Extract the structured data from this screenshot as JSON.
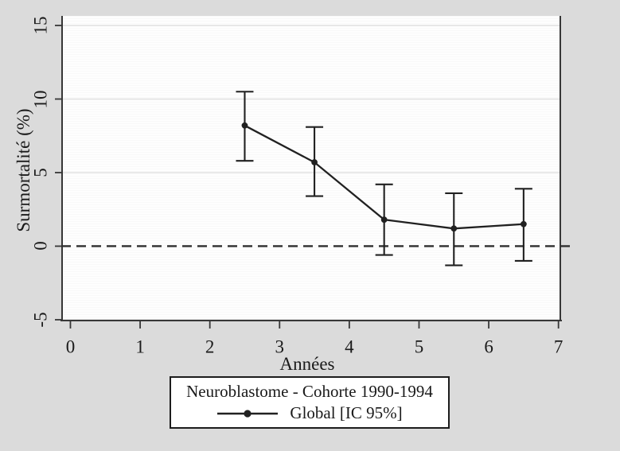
{
  "figure": {
    "background_color": "#dbdbdb",
    "plot_background_color": "#fefefe"
  },
  "chart_data": {
    "type": "line",
    "title": "",
    "xlabel": "Années",
    "ylabel": "Surmortalité (%)",
    "x_ticks": [
      0,
      1,
      2,
      3,
      4,
      5,
      6,
      7
    ],
    "y_ticks": [
      15,
      10,
      5,
      0,
      -5
    ],
    "xlim": [
      -0.131,
      7.038
    ],
    "ylim": [
      -5.11,
      15.65
    ],
    "grid": "horizontal",
    "reference_line_y": 0,
    "reference_line_style": "dashed",
    "series": [
      {
        "name": "Global [IC 95%]",
        "x": [
          2.5,
          3.5,
          4.5,
          5.5,
          6.5
        ],
        "y": [
          8.2,
          5.7,
          1.8,
          1.2,
          1.5
        ],
        "ci_low": [
          5.8,
          3.4,
          -0.6,
          -1.3,
          -1.0
        ],
        "ci_high": [
          10.5,
          8.1,
          4.2,
          3.6,
          3.9
        ],
        "marker": "filled-circle"
      }
    ],
    "legend": {
      "title": "Neuroblastome - Cohorte 1990-1994",
      "entries": [
        "Global [IC 95%]"
      ],
      "position": "bottom-center"
    },
    "colors": {
      "series": "#212121",
      "grid": "#e2e2e2",
      "axis": "#373737",
      "reference": "#2e2e2e",
      "text": "#1a1a1a"
    }
  }
}
